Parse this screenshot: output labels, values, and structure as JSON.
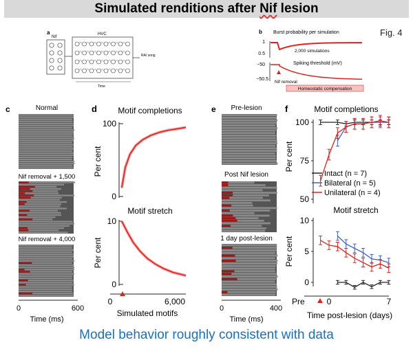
{
  "title": {
    "prefix": "Simulated renditions after ",
    "nif": "Nif",
    "suffix": " lesion"
  },
  "fig_label": "Fig. 4",
  "caption": "Model behavior roughly consistent with data",
  "panel_a": {
    "letter": "a",
    "nif": "Nif",
    "hvc": "HVC",
    "output": "RA/ song",
    "time": "Time"
  },
  "panel_b": {
    "letter": "b",
    "burst_label": "Burst probability per simulation",
    "simulations_label": "2,000 simulations",
    "threshold_label": "Spiking threshold (mV)",
    "nif_removal": "Nif removal",
    "homeostatic": "Homeostatic compensation",
    "yticks_top": [
      "1",
      "0.5"
    ],
    "yticks_bottom": [
      "−50",
      "−50.5"
    ]
  },
  "panel_c": {
    "letter": "c",
    "labels": [
      "Normal",
      "Nif removal + 1,500",
      "Nif removal + 4,000"
    ],
    "xticks": [
      "0",
      "600"
    ],
    "xlabel": "Time (ms)"
  },
  "panel_d": {
    "letter": "d",
    "top_title": "Motif completions",
    "bottom_title": "Motif stretch",
    "ylabel": "Per cent",
    "top_yticks": [
      "100",
      "0"
    ],
    "bottom_yticks": [
      "10",
      "0"
    ],
    "xticks": [
      "0",
      "6,000"
    ],
    "xlabel": "Simulated motifs"
  },
  "panel_e": {
    "letter": "e",
    "labels": [
      "Pre-lesion",
      "Post Nif lesion",
      "1 day post-lesion"
    ],
    "xticks": [
      "0",
      "400"
    ],
    "xlabel": "Time (ms)"
  },
  "panel_f": {
    "letter": "f",
    "top_title": "Motif completions",
    "bottom_title": "Motif stretch",
    "ylabel": "Per cent",
    "top_yticks": [
      "100",
      "75",
      "50"
    ],
    "bottom_yticks": [
      "10",
      "5",
      "0"
    ],
    "xticks": [
      "Pre",
      "0",
      "7"
    ],
    "xlabel": "Time post-lesion (days)",
    "legend": [
      "Intact (n = 7)",
      "Bilateral (n = 5)",
      "Unilateral (n = 4)"
    ]
  },
  "colors": {
    "intact": "#222222",
    "bilateral": "#3a5fcd",
    "unilateral": "#e0231b",
    "lesion": "#a01515",
    "raster": "#707070"
  },
  "chart_data": [
    {
      "type": "line",
      "title": "Motif completions (simulated)",
      "xlabel": "Simulated motifs",
      "ylabel": "Per cent",
      "xlim": [
        0,
        6500
      ],
      "ylim": [
        0,
        100
      ],
      "x": [
        1000,
        1300,
        1700,
        2200,
        2800,
        3500,
        4200,
        5000,
        5800,
        6500
      ],
      "values": [
        12,
        40,
        58,
        70,
        78,
        84,
        88,
        91,
        93,
        95
      ]
    },
    {
      "type": "line",
      "title": "Motif stretch (simulated)",
      "xlabel": "Simulated motifs",
      "ylabel": "Per cent",
      "xlim": [
        0,
        6500
      ],
      "ylim": [
        0,
        10
      ],
      "x": [
        1000,
        1500,
        2000,
        2600,
        3200,
        3900,
        4600,
        5400,
        6500
      ],
      "values": [
        10,
        8.2,
        6.6,
        5.2,
        4.1,
        3.2,
        2.5,
        1.9,
        1.4
      ]
    },
    {
      "type": "line",
      "title": "Motif completions (data)",
      "xlabel": "Time post-lesion (days)",
      "ylabel": "Per cent",
      "xlim": [
        -2,
        7
      ],
      "ylim": [
        50,
        100
      ],
      "series": [
        {
          "name": "Intact",
          "x": [
            -1,
            1,
            2,
            3,
            4,
            5,
            6,
            7
          ],
          "values": [
            100,
            100,
            99,
            100,
            100,
            100,
            100,
            100
          ]
        },
        {
          "name": "Bilateral",
          "x": [
            1,
            2,
            3,
            4,
            5,
            6,
            7
          ],
          "values": [
            88,
            97,
            99,
            99,
            100,
            100,
            100
          ]
        },
        {
          "name": "Unilateral",
          "x": [
            -1,
            0,
            1,
            2,
            3,
            4,
            5,
            6,
            7
          ],
          "values": [
            62,
            79,
            93,
            97,
            99,
            99,
            100,
            101,
            100
          ]
        }
      ]
    },
    {
      "type": "line",
      "title": "Motif stretch (data)",
      "xlabel": "Time post-lesion (days)",
      "ylabel": "Per cent",
      "xlim": [
        -2,
        7
      ],
      "ylim": [
        0,
        10
      ],
      "series": [
        {
          "name": "Intact",
          "x": [
            1,
            2,
            3,
            4,
            5,
            6,
            7
          ],
          "values": [
            0,
            0,
            -0.8,
            0,
            -0.7,
            0,
            0
          ]
        },
        {
          "name": "Bilateral",
          "x": [
            1,
            2,
            3,
            4,
            5,
            6,
            7
          ],
          "values": [
            7.5,
            6.2,
            5.5,
            4.8,
            3.8,
            3.6,
            3.2
          ]
        },
        {
          "name": "Unilateral",
          "x": [
            -1,
            0,
            1,
            2,
            3,
            4,
            5,
            6,
            7
          ],
          "values": [
            6.8,
            6.0,
            5.8,
            4.8,
            3.9,
            3.2,
            2.5,
            3.0,
            2.3
          ]
        }
      ]
    }
  ]
}
